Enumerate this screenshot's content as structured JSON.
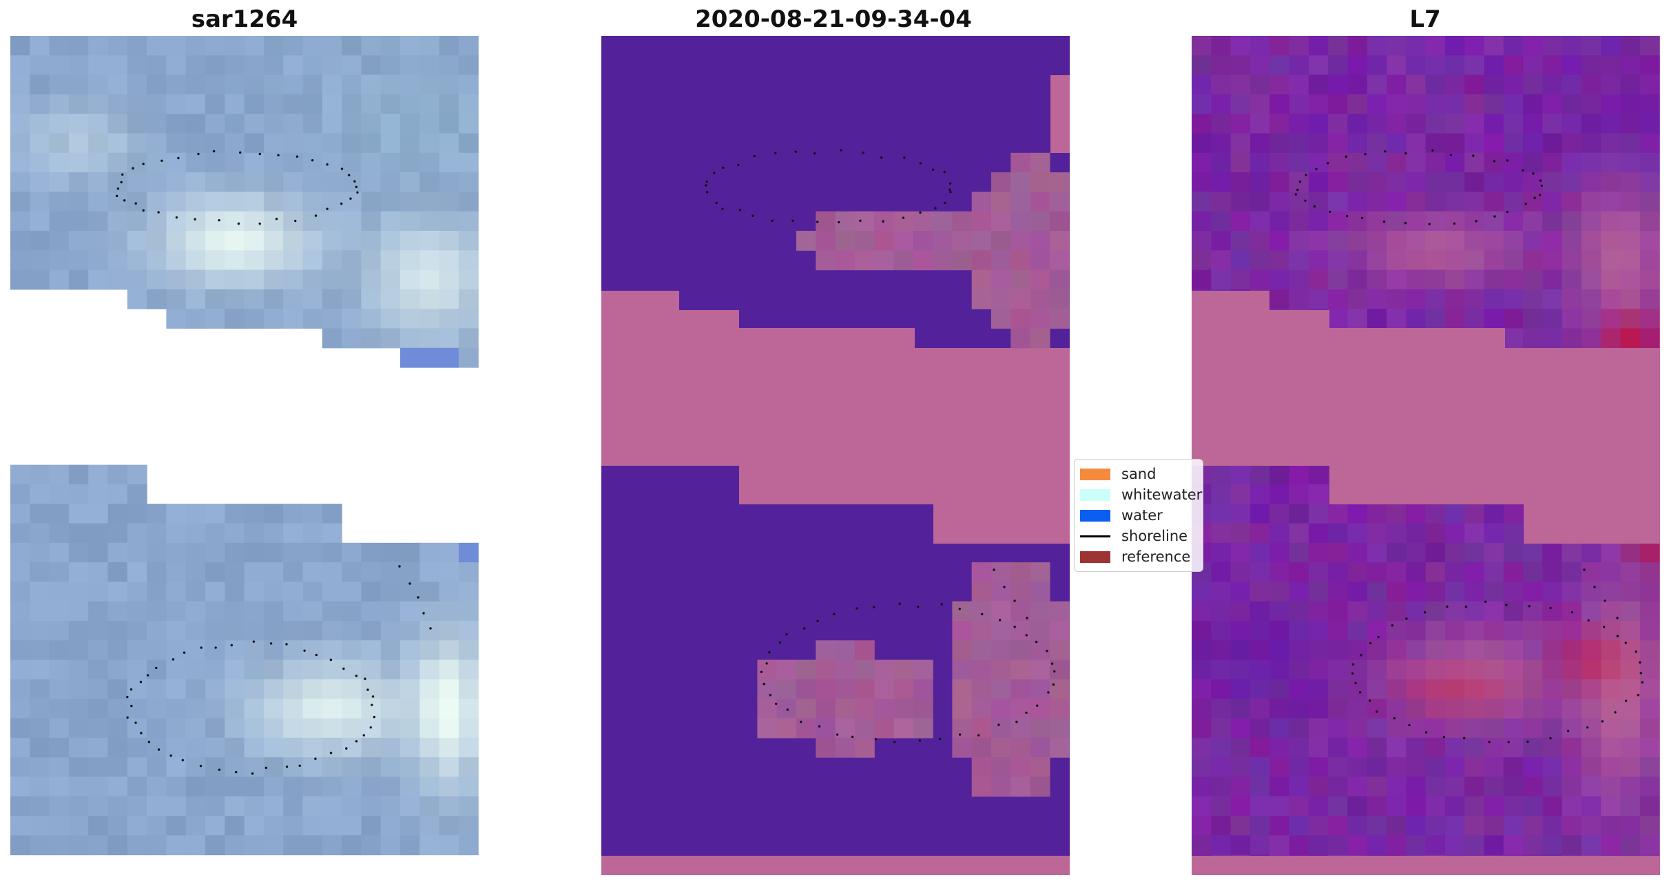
{
  "panels": [
    {
      "title": "sar1264"
    },
    {
      "title": "2020-08-21-09-34-04"
    },
    {
      "title": "L7"
    }
  ],
  "legend": [
    {
      "label": "sand",
      "color": "#f58a3d",
      "kind": "patch"
    },
    {
      "label": "whitewater",
      "color": "#ccfffc",
      "kind": "patch"
    },
    {
      "label": "water",
      "color": "#0a5ff0",
      "kind": "patch"
    },
    {
      "label": "shoreline",
      "color": "#000000",
      "kind": "line"
    },
    {
      "label": "reference",
      "color": "#9e3333",
      "kind": "patch"
    }
  ],
  "colors": {
    "sar_base": "#8aa6cc",
    "purple": "#53229a",
    "pink": "#bc6797",
    "mauve": "#a35c97",
    "l7_base": "#7a27a2",
    "crimson": "#c5103e"
  }
}
